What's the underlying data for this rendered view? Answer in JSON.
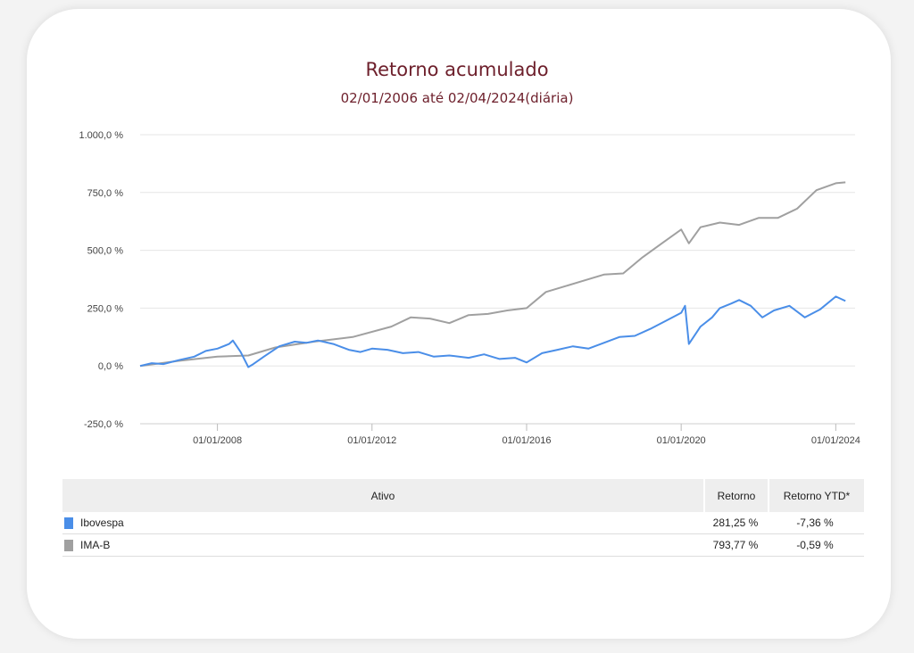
{
  "chart_data": {
    "type": "line",
    "title": "Retorno acumulado",
    "subtitle": "02/01/2006 até 02/04/2024(diária)",
    "xlabel": "",
    "ylabel": "",
    "xlim": [
      2006.0,
      2024.5
    ],
    "ylim": [
      -250,
      1000
    ],
    "y_ticks": [
      1000,
      750,
      500,
      250,
      0,
      -250
    ],
    "y_tick_labels": [
      "1.000,0 %",
      "750,0 %",
      "500,0 %",
      "250,0 %",
      "0,0 %",
      "-250,0 %"
    ],
    "x_ticks": [
      2008.0,
      2012.0,
      2016.0,
      2020.0,
      2024.0
    ],
    "x_tick_labels": [
      "01/01/2008",
      "01/01/2012",
      "01/01/2016",
      "01/01/2020",
      "01/01/2024"
    ],
    "grid": true,
    "series": [
      {
        "name": "Ibovespa",
        "color": "#4a8ee8",
        "x": [
          2006.0,
          2006.3,
          2006.6,
          2007.0,
          2007.4,
          2007.7,
          2008.0,
          2008.3,
          2008.4,
          2008.6,
          2008.8,
          2008.9,
          2009.2,
          2009.6,
          2010.0,
          2010.3,
          2010.6,
          2011.0,
          2011.4,
          2011.7,
          2012.0,
          2012.4,
          2012.8,
          2013.2,
          2013.6,
          2014.0,
          2014.5,
          2014.9,
          2015.3,
          2015.7,
          2016.0,
          2016.4,
          2016.8,
          2017.2,
          2017.6,
          2018.0,
          2018.4,
          2018.8,
          2019.2,
          2019.6,
          2020.0,
          2020.1,
          2020.2,
          2020.5,
          2020.8,
          2021.0,
          2021.3,
          2021.5,
          2021.8,
          2022.1,
          2022.4,
          2022.8,
          2023.2,
          2023.6,
          2024.0,
          2024.25
        ],
        "y": [
          0,
          12,
          8,
          25,
          40,
          65,
          75,
          95,
          110,
          60,
          -5,
          5,
          40,
          85,
          105,
          100,
          110,
          95,
          70,
          60,
          75,
          70,
          55,
          60,
          40,
          45,
          35,
          50,
          30,
          35,
          15,
          55,
          70,
          85,
          75,
          100,
          125,
          130,
          160,
          195,
          230,
          260,
          95,
          170,
          210,
          250,
          270,
          285,
          260,
          210,
          240,
          260,
          210,
          245,
          300,
          281
        ]
      },
      {
        "name": "IMA-B",
        "color": "#a0a0a0",
        "x": [
          2006.0,
          2007.0,
          2008.0,
          2008.8,
          2009.5,
          2010.5,
          2011.5,
          2012.5,
          2013.0,
          2013.5,
          2014.0,
          2014.5,
          2015.0,
          2015.5,
          2016.0,
          2016.5,
          2017.0,
          2017.5,
          2018.0,
          2018.5,
          2019.0,
          2019.5,
          2020.0,
          2020.2,
          2020.5,
          2021.0,
          2021.5,
          2022.0,
          2022.5,
          2023.0,
          2023.5,
          2024.0,
          2024.25
        ],
        "y": [
          0,
          22,
          40,
          45,
          80,
          105,
          125,
          170,
          210,
          205,
          185,
          220,
          225,
          240,
          250,
          320,
          345,
          370,
          395,
          400,
          470,
          530,
          590,
          530,
          600,
          620,
          610,
          640,
          640,
          680,
          760,
          790,
          794
        ]
      }
    ]
  },
  "table": {
    "headers": [
      "Ativo",
      "Retorno",
      "Retorno YTD*"
    ],
    "rows": [
      {
        "name": "Ibovespa",
        "color": "#4a8ee8",
        "retorno": "281,25 %",
        "ytd": "-7,36 %"
      },
      {
        "name": "IMA-B",
        "color": "#a0a0a0",
        "retorno": "793,77 %",
        "ytd": "-0,59 %"
      }
    ]
  }
}
